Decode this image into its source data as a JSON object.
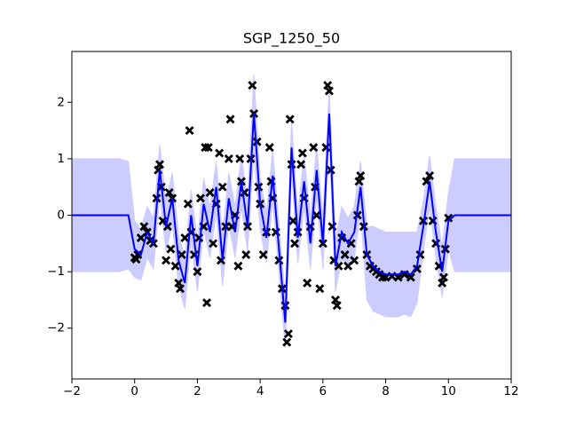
{
  "chart_data": {
    "type": "gp",
    "title": "SGP_1250_50",
    "xlim": [
      -2,
      12
    ],
    "ylim": [
      -2.9,
      2.9
    ],
    "xticks": [
      {
        "value": -2,
        "label": "−2"
      },
      0,
      2,
      4,
      6,
      8,
      10,
      12
    ],
    "yticks": [
      {
        "value": -2,
        "label": "−2"
      },
      {
        "value": -1,
        "label": "−1"
      },
      0,
      1,
      2
    ],
    "x": [
      -2,
      -1.5,
      -1,
      -0.5,
      -0.2,
      0.0,
      0.2,
      0.4,
      0.6,
      0.8,
      1.0,
      1.2,
      1.4,
      1.6,
      1.8,
      2.0,
      2.2,
      2.4,
      2.6,
      2.8,
      3.0,
      3.2,
      3.4,
      3.6,
      3.8,
      4.0,
      4.2,
      4.4,
      4.6,
      4.8,
      5.0,
      5.2,
      5.4,
      5.6,
      5.8,
      6.0,
      6.2,
      6.4,
      6.6,
      6.8,
      7.0,
      7.2,
      7.4,
      7.6,
      7.8,
      8.0,
      8.2,
      8.4,
      8.6,
      8.8,
      9.0,
      9.2,
      9.4,
      9.6,
      9.8,
      10.0,
      10.2,
      10.5,
      11,
      11.5,
      12
    ],
    "mean": {
      "color": "#0000ff",
      "values": [
        0,
        0,
        0,
        0,
        0,
        -0.6,
        -0.7,
        -0.3,
        -0.5,
        0.8,
        -0.2,
        0.3,
        -0.8,
        -1.2,
        0.0,
        -0.9,
        0.2,
        -0.3,
        0.5,
        -0.8,
        0.3,
        -0.3,
        0.6,
        -0.2,
        1.8,
        0.2,
        -0.4,
        0.7,
        -0.6,
        -1.9,
        1.2,
        -0.4,
        0.6,
        -0.5,
        0.8,
        -0.5,
        1.8,
        -0.9,
        -0.3,
        -0.5,
        -0.3,
        0.5,
        -0.7,
        -0.9,
        -1.0,
        -1.05,
        -1.05,
        -1.05,
        -1.0,
        -1.05,
        -0.9,
        -0.2,
        0.6,
        -0.3,
        -1.0,
        -0.1,
        0,
        0,
        0,
        0,
        0
      ]
    },
    "band": {
      "color": "#ccccff",
      "upper": [
        1,
        1,
        1,
        1,
        0.95,
        -0.1,
        -0.25,
        0.15,
        -0.05,
        1.25,
        0.25,
        0.75,
        -0.35,
        -0.75,
        0.45,
        -0.45,
        0.65,
        0.15,
        0.95,
        -0.35,
        0.75,
        0.15,
        1.05,
        0.25,
        2.5,
        0.65,
        0.05,
        1.15,
        -0.15,
        -1.45,
        1.65,
        0.05,
        1.05,
        -0.05,
        1.25,
        -0.05,
        2.25,
        -0.45,
        0.15,
        -0.05,
        0.15,
        0.95,
        -0.2,
        -0.2,
        -0.25,
        -0.3,
        -0.3,
        -0.3,
        -0.3,
        -0.3,
        -0.3,
        0.25,
        1.05,
        0.15,
        -0.55,
        0.4,
        1,
        1,
        1,
        1,
        1
      ],
      "lower": [
        -1,
        -1,
        -1,
        -1,
        -0.95,
        -1.1,
        -1.15,
        -0.75,
        -0.95,
        0.35,
        -0.65,
        -0.15,
        -1.25,
        -1.65,
        -0.45,
        -1.35,
        -0.25,
        -0.75,
        0.05,
        -1.25,
        -0.15,
        -0.75,
        0.15,
        -0.65,
        1.1,
        -0.25,
        -0.85,
        0.25,
        -1.05,
        -2.35,
        0.75,
        -0.85,
        0.15,
        -0.95,
        0.35,
        -0.95,
        1.35,
        -1.35,
        -0.75,
        -0.95,
        -0.75,
        0.05,
        -1.5,
        -1.7,
        -1.75,
        -1.8,
        -1.8,
        -1.8,
        -1.75,
        -1.8,
        -1.55,
        -0.65,
        0.15,
        -0.75,
        -1.45,
        -0.6,
        -1,
        -1,
        -1,
        -1,
        -1
      ]
    },
    "points_color": "#000000",
    "points": [
      [
        0.0,
        -0.75
      ],
      [
        0.05,
        -0.78
      ],
      [
        0.1,
        -0.7
      ],
      [
        0.2,
        -0.4
      ],
      [
        0.3,
        -0.2
      ],
      [
        0.4,
        -0.3
      ],
      [
        0.5,
        -0.45
      ],
      [
        0.6,
        -0.5
      ],
      [
        0.7,
        0.3
      ],
      [
        0.75,
        0.8
      ],
      [
        0.8,
        0.9
      ],
      [
        0.85,
        0.5
      ],
      [
        0.9,
        -0.1
      ],
      [
        1.0,
        -0.8
      ],
      [
        1.05,
        -0.2
      ],
      [
        1.1,
        0.4
      ],
      [
        1.15,
        -0.6
      ],
      [
        1.2,
        0.3
      ],
      [
        1.3,
        -0.9
      ],
      [
        1.4,
        -1.2
      ],
      [
        1.45,
        -1.3
      ],
      [
        1.5,
        -0.7
      ],
      [
        1.6,
        -0.4
      ],
      [
        1.7,
        0.2
      ],
      [
        1.75,
        1.5
      ],
      [
        1.8,
        -0.3
      ],
      [
        1.9,
        -0.7
      ],
      [
        2.0,
        -1.0
      ],
      [
        2.05,
        -0.4
      ],
      [
        2.1,
        0.3
      ],
      [
        2.2,
        -0.2
      ],
      [
        2.25,
        1.2
      ],
      [
        2.3,
        -1.55
      ],
      [
        2.35,
        1.2
      ],
      [
        2.4,
        0.4
      ],
      [
        2.5,
        -0.5
      ],
      [
        2.6,
        0.2
      ],
      [
        2.7,
        1.1
      ],
      [
        2.75,
        -0.8
      ],
      [
        2.8,
        0.5
      ],
      [
        2.9,
        -0.2
      ],
      [
        3.0,
        1.0
      ],
      [
        3.05,
        1.7
      ],
      [
        3.1,
        -0.2
      ],
      [
        3.2,
        0.0
      ],
      [
        3.3,
        -0.9
      ],
      [
        3.35,
        1.0
      ],
      [
        3.4,
        0.6
      ],
      [
        3.5,
        0.4
      ],
      [
        3.55,
        -0.7
      ],
      [
        3.6,
        -0.2
      ],
      [
        3.7,
        1.0
      ],
      [
        3.75,
        2.3
      ],
      [
        3.8,
        1.8
      ],
      [
        3.9,
        1.3
      ],
      [
        3.95,
        0.5
      ],
      [
        4.0,
        0.2
      ],
      [
        4.1,
        -0.7
      ],
      [
        4.2,
        -0.3
      ],
      [
        4.3,
        1.2
      ],
      [
        4.35,
        0.6
      ],
      [
        4.4,
        0.3
      ],
      [
        4.5,
        -0.3
      ],
      [
        4.6,
        -0.8
      ],
      [
        4.7,
        -1.3
      ],
      [
        4.8,
        -1.6
      ],
      [
        4.85,
        -2.25
      ],
      [
        4.9,
        -2.1
      ],
      [
        4.95,
        1.7
      ],
      [
        5.0,
        0.9
      ],
      [
        5.05,
        -0.1
      ],
      [
        5.1,
        -0.5
      ],
      [
        5.2,
        -0.3
      ],
      [
        5.3,
        0.9
      ],
      [
        5.35,
        1.1
      ],
      [
        5.4,
        0.3
      ],
      [
        5.5,
        -1.2
      ],
      [
        5.6,
        -0.2
      ],
      [
        5.7,
        1.2
      ],
      [
        5.75,
        0.5
      ],
      [
        5.8,
        0.0
      ],
      [
        5.9,
        -1.3
      ],
      [
        6.0,
        -0.5
      ],
      [
        6.1,
        1.2
      ],
      [
        6.15,
        2.3
      ],
      [
        6.2,
        2.2
      ],
      [
        6.25,
        0.8
      ],
      [
        6.3,
        -0.2
      ],
      [
        6.35,
        -0.8
      ],
      [
        6.4,
        -1.5
      ],
      [
        6.45,
        -1.6
      ],
      [
        6.5,
        -0.9
      ],
      [
        6.6,
        -0.4
      ],
      [
        6.7,
        -0.7
      ],
      [
        6.8,
        -0.9
      ],
      [
        6.9,
        -0.5
      ],
      [
        7.0,
        -0.8
      ],
      [
        7.1,
        0.0
      ],
      [
        7.15,
        0.6
      ],
      [
        7.2,
        0.7
      ],
      [
        7.3,
        -0.2
      ],
      [
        7.4,
        -0.7
      ],
      [
        7.5,
        -0.9
      ],
      [
        7.6,
        -0.95
      ],
      [
        7.7,
        -1.0
      ],
      [
        7.8,
        -1.05
      ],
      [
        7.9,
        -1.1
      ],
      [
        8.0,
        -1.1
      ],
      [
        8.2,
        -1.08
      ],
      [
        8.4,
        -1.1
      ],
      [
        8.6,
        -1.05
      ],
      [
        8.8,
        -1.1
      ],
      [
        9.0,
        -0.95
      ],
      [
        9.1,
        -0.7
      ],
      [
        9.2,
        -0.1
      ],
      [
        9.3,
        0.6
      ],
      [
        9.4,
        0.7
      ],
      [
        9.5,
        -0.1
      ],
      [
        9.6,
        -0.5
      ],
      [
        9.7,
        -0.9
      ],
      [
        9.8,
        -1.2
      ],
      [
        9.85,
        -1.1
      ],
      [
        9.9,
        -0.6
      ],
      [
        10.0,
        -0.05
      ]
    ]
  }
}
